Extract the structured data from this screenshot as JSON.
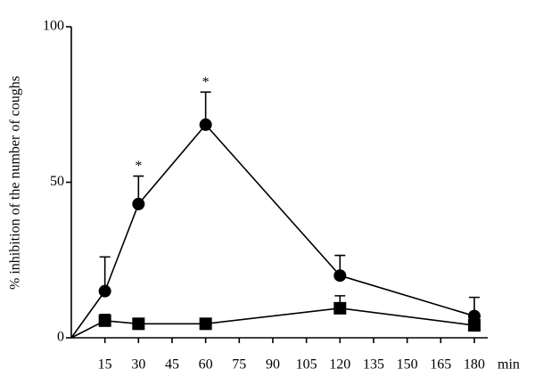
{
  "chart_data": {
    "type": "line",
    "y_label": "% inhibition of the number of coughs",
    "x_label": "min",
    "x": [
      15,
      30,
      60,
      120,
      180
    ],
    "series": [
      {
        "marker": "circle",
        "color": "#000000",
        "values": [
          15,
          43,
          68.5,
          20,
          7
        ],
        "errors": [
          11,
          9,
          10.5,
          6.5,
          6
        ]
      },
      {
        "marker": "square",
        "color": "#000000",
        "values": [
          5.5,
          4.5,
          4.5,
          9.5,
          4
        ],
        "errors": [
          2,
          null,
          null,
          4,
          null
        ]
      }
    ],
    "annotations": [
      {
        "x": 30,
        "text": "*"
      },
      {
        "x": 60,
        "text": "*"
      }
    ],
    "xlim": [
      0,
      186
    ],
    "ylim": [
      0,
      100
    ],
    "xticks": [
      15,
      30,
      45,
      60,
      75,
      90,
      105,
      120,
      135,
      150,
      165,
      180
    ],
    "yticks": [
      0,
      50,
      100
    ]
  }
}
